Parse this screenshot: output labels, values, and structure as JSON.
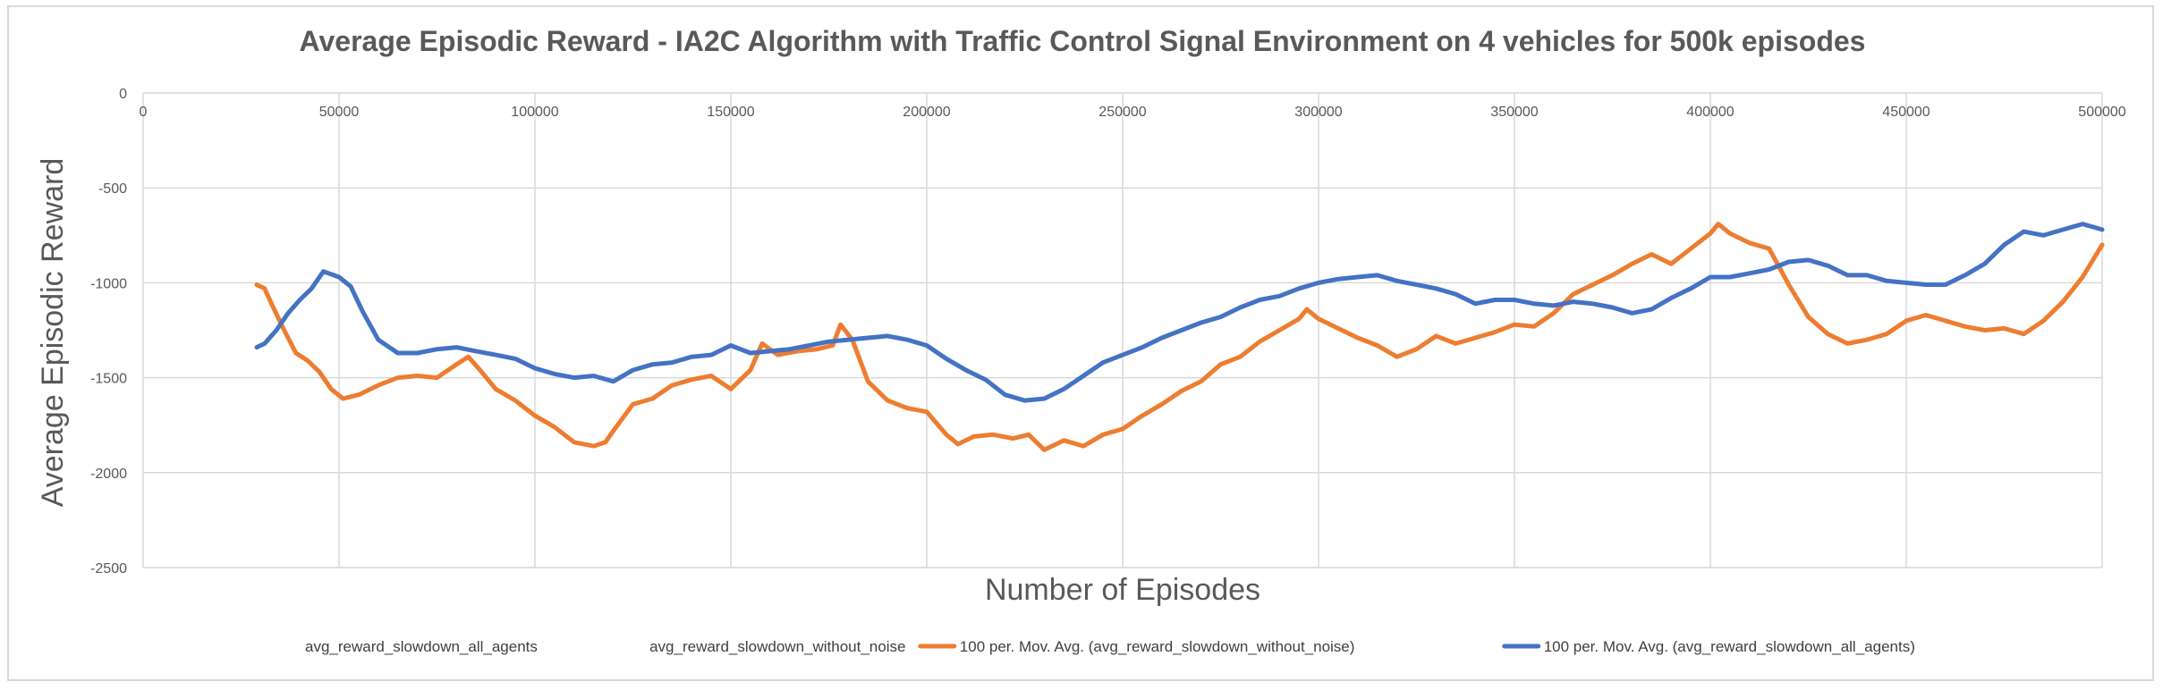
{
  "chart_data": {
    "type": "line",
    "title": "Average Episodic Reward - IA2C Algorithm with Traffic Control Signal Environment on 4 vehicles for 500k episodes",
    "xlabel": "Number of Episodes",
    "ylabel": "Average Episodic Reward",
    "xlim": [
      0,
      500000
    ],
    "ylim": [
      -2500,
      0
    ],
    "xticks": [
      0,
      50000,
      100000,
      150000,
      200000,
      250000,
      300000,
      350000,
      400000,
      450000,
      500000
    ],
    "yticks": [
      0,
      -500,
      -1000,
      -1500,
      -2000,
      -2500
    ],
    "grid": true,
    "x_axis_position": "top",
    "legend_position": "bottom",
    "legend": [
      "avg_reward_slowdown_all_agents",
      "avg_reward_slowdown_without_noise",
      "100 per. Mov. Avg. (avg_reward_slowdown_without_noise)",
      "100 per. Mov. Avg. (avg_reward_slowdown_all_agents)"
    ],
    "series": [
      {
        "name": "100 per. Mov. Avg. (avg_reward_slowdown_without_noise)",
        "color": "#ed7d31",
        "x": [
          29000,
          31000,
          33000,
          36000,
          39000,
          42000,
          45000,
          48000,
          51000,
          55000,
          60000,
          65000,
          70000,
          75000,
          80000,
          83000,
          86000,
          90000,
          95000,
          100000,
          105000,
          110000,
          115000,
          118000,
          120000,
          125000,
          130000,
          135000,
          140000,
          145000,
          150000,
          155000,
          158000,
          162000,
          167000,
          172000,
          176000,
          178000,
          181000,
          185000,
          190000,
          195000,
          200000,
          205000,
          208000,
          212000,
          217000,
          222000,
          226000,
          230000,
          235000,
          240000,
          245000,
          250000,
          255000,
          260000,
          265000,
          270000,
          275000,
          280000,
          285000,
          290000,
          295000,
          297000,
          300000,
          305000,
          310000,
          315000,
          320000,
          325000,
          330000,
          335000,
          340000,
          345000,
          350000,
          355000,
          360000,
          365000,
          370000,
          375000,
          380000,
          385000,
          390000,
          395000,
          400000,
          402000,
          405000,
          410000,
          415000,
          420000,
          425000,
          430000,
          435000,
          440000,
          445000,
          450000,
          455000,
          460000,
          465000,
          470000,
          475000,
          480000,
          485000,
          490000,
          495000,
          500000
        ],
        "values": [
          -1010,
          -1030,
          -1120,
          -1250,
          -1370,
          -1410,
          -1470,
          -1560,
          -1610,
          -1590,
          -1540,
          -1500,
          -1490,
          -1500,
          -1430,
          -1390,
          -1460,
          -1560,
          -1620,
          -1700,
          -1760,
          -1840,
          -1860,
          -1840,
          -1780,
          -1640,
          -1610,
          -1540,
          -1510,
          -1490,
          -1560,
          -1460,
          -1320,
          -1380,
          -1360,
          -1350,
          -1330,
          -1220,
          -1300,
          -1520,
          -1620,
          -1660,
          -1680,
          -1800,
          -1850,
          -1810,
          -1800,
          -1820,
          -1800,
          -1880,
          -1830,
          -1860,
          -1800,
          -1770,
          -1700,
          -1640,
          -1570,
          -1520,
          -1430,
          -1390,
          -1310,
          -1250,
          -1190,
          -1140,
          -1190,
          -1240,
          -1290,
          -1330,
          -1390,
          -1350,
          -1280,
          -1320,
          -1290,
          -1260,
          -1220,
          -1230,
          -1160,
          -1060,
          -1010,
          -960,
          -900,
          -850,
          -900,
          -820,
          -740,
          -690,
          -740,
          -790,
          -820,
          -1010,
          -1180,
          -1270,
          -1320,
          -1300,
          -1270,
          -1200,
          -1170,
          -1200,
          -1230,
          -1250,
          -1240,
          -1270,
          -1200,
          -1100,
          -970,
          -800
        ]
      },
      {
        "name": "100 per. Mov. Avg. (avg_reward_slowdown_all_agents)",
        "color": "#4472c4",
        "x": [
          29000,
          31000,
          34000,
          37000,
          40000,
          43000,
          46000,
          50000,
          53000,
          56000,
          60000,
          65000,
          70000,
          75000,
          80000,
          85000,
          90000,
          95000,
          100000,
          105000,
          110000,
          115000,
          120000,
          125000,
          130000,
          135000,
          140000,
          145000,
          150000,
          155000,
          160000,
          165000,
          170000,
          175000,
          180000,
          185000,
          190000,
          195000,
          200000,
          205000,
          210000,
          215000,
          220000,
          225000,
          230000,
          235000,
          240000,
          245000,
          250000,
          255000,
          260000,
          265000,
          270000,
          275000,
          280000,
          285000,
          290000,
          295000,
          300000,
          305000,
          310000,
          315000,
          320000,
          325000,
          330000,
          335000,
          340000,
          345000,
          350000,
          355000,
          360000,
          365000,
          370000,
          375000,
          380000,
          385000,
          390000,
          395000,
          400000,
          405000,
          410000,
          415000,
          420000,
          425000,
          430000,
          435000,
          440000,
          445000,
          450000,
          455000,
          460000,
          465000,
          470000,
          475000,
          480000,
          485000,
          490000,
          495000,
          500000
        ],
        "values": [
          -1340,
          -1320,
          -1250,
          -1160,
          -1090,
          -1030,
          -940,
          -970,
          -1020,
          -1150,
          -1300,
          -1370,
          -1370,
          -1350,
          -1340,
          -1360,
          -1380,
          -1400,
          -1450,
          -1480,
          -1500,
          -1490,
          -1520,
          -1460,
          -1430,
          -1420,
          -1390,
          -1380,
          -1330,
          -1370,
          -1360,
          -1350,
          -1330,
          -1310,
          -1300,
          -1290,
          -1280,
          -1300,
          -1330,
          -1400,
          -1460,
          -1510,
          -1590,
          -1620,
          -1610,
          -1560,
          -1490,
          -1420,
          -1380,
          -1340,
          -1290,
          -1250,
          -1210,
          -1180,
          -1130,
          -1090,
          -1070,
          -1030,
          -1000,
          -980,
          -970,
          -960,
          -990,
          -1010,
          -1030,
          -1060,
          -1110,
          -1090,
          -1090,
          -1110,
          -1120,
          -1100,
          -1110,
          -1130,
          -1160,
          -1140,
          -1080,
          -1030,
          -970,
          -970,
          -950,
          -930,
          -890,
          -880,
          -910,
          -960,
          -960,
          -990,
          -1000,
          -1010,
          -1010,
          -960,
          -900,
          -800,
          -730,
          -750,
          -720,
          -690,
          -720
        ]
      }
    ]
  }
}
